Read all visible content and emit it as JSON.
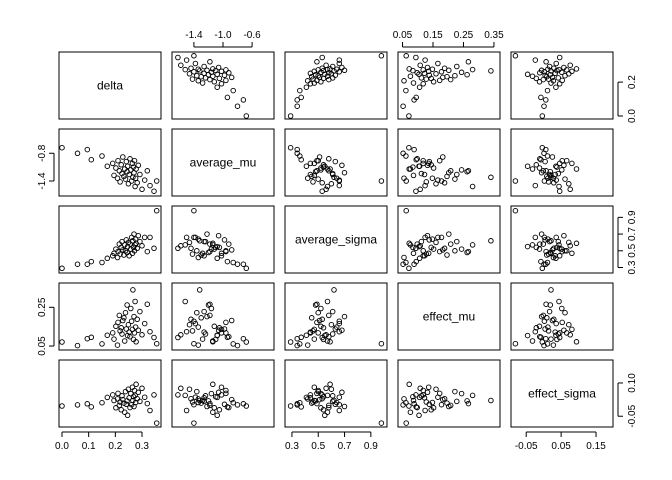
{
  "chart_data": {
    "type": "scatter",
    "variables": [
      "delta",
      "average_mu",
      "average_sigma",
      "effect_mu",
      "effect_sigma"
    ],
    "ranges": [
      [
        0.0,
        0.36
      ],
      [
        -1.66,
        -0.34
      ],
      [
        0.27,
        1.0
      ],
      [
        0.045,
        0.36
      ],
      [
        -0.085,
        0.19
      ]
    ],
    "ticks": [
      [
        0.0,
        0.1,
        0.2,
        0.3
      ],
      [
        -1.4,
        -1.0,
        -0.6
      ],
      [
        0.3,
        0.5,
        0.7,
        0.9
      ],
      [
        0.05,
        0.15,
        0.25,
        0.35
      ],
      [
        -0.05,
        0.05,
        0.15
      ]
    ],
    "tick_labels": [
      [
        "0.0",
        "0.1",
        "0.2",
        "0.3"
      ],
      [
        "-1.4",
        "-1.0",
        "-0.6"
      ],
      [
        "0.3",
        "0.5",
        "0.7",
        "0.9"
      ],
      [
        "0.05",
        "0.15",
        "0.25",
        "0.35"
      ],
      [
        "-0.05",
        "0.05",
        "0.15"
      ]
    ],
    "alt_ticks": [
      [
        0.0,
        0.2
      ],
      [
        -1.4,
        -0.8
      ],
      [
        0.3,
        0.5,
        0.7,
        0.9
      ],
      [
        0.05,
        0.25
      ],
      [
        -0.05,
        0.1
      ]
    ],
    "alt_tick_labels": [
      [
        "0.0",
        "0.2"
      ],
      [
        "-1.4",
        "-0.8"
      ],
      [
        "0.3",
        "0.5",
        "0.7",
        "0.9"
      ],
      [
        "0.05",
        "0.25"
      ],
      [
        "-0.05",
        "0.10"
      ]
    ],
    "points": [
      [
        0.0,
        -0.68,
        0.29,
        0.071,
        -0.004
      ],
      [
        0.058,
        -0.8,
        0.34,
        0.052,
        0.001
      ],
      [
        0.095,
        -0.72,
        0.34,
        0.088,
        0.006
      ],
      [
        0.11,
        -0.94,
        0.37,
        0.095,
        -0.008
      ],
      [
        0.15,
        -0.86,
        0.36,
        0.061,
        0.011
      ],
      [
        0.17,
        -1.08,
        0.41,
        0.106,
        0.035
      ],
      [
        0.19,
        -1.02,
        0.44,
        0.118,
        0.046
      ],
      [
        0.195,
        -1.28,
        0.47,
        0.086,
        0.021
      ],
      [
        0.202,
        -1.12,
        0.52,
        0.152,
        -0.012
      ],
      [
        0.208,
        -1.34,
        0.42,
        0.055,
        0.028
      ],
      [
        0.21,
        -0.96,
        0.49,
        0.172,
        0.053
      ],
      [
        0.215,
        -1.18,
        0.58,
        0.208,
        -0.001
      ],
      [
        0.218,
        -1.42,
        0.46,
        0.128,
        0.014
      ],
      [
        0.222,
        -1.05,
        0.54,
        0.144,
        -0.021
      ],
      [
        0.225,
        -1.24,
        0.61,
        0.112,
        0.042
      ],
      [
        0.228,
        -0.88,
        0.51,
        0.182,
        0.025
      ],
      [
        0.232,
        -1.3,
        0.45,
        0.196,
        0.009
      ],
      [
        0.235,
        -1.14,
        0.57,
        0.076,
        -0.032
      ],
      [
        0.238,
        -1.36,
        0.5,
        0.222,
        0.061
      ],
      [
        0.241,
        -0.98,
        0.63,
        0.138,
        0.004
      ],
      [
        0.244,
        -1.2,
        0.48,
        0.262,
        0.019
      ],
      [
        0.246,
        -1.08,
        0.55,
        0.104,
        -0.046
      ],
      [
        0.249,
        -1.46,
        0.6,
        0.16,
        0.072
      ],
      [
        0.252,
        -1.26,
        0.44,
        0.122,
        0.033
      ],
      [
        0.255,
        -0.92,
        0.58,
        0.098,
        -0.011
      ],
      [
        0.258,
        -1.16,
        0.52,
        0.244,
        0.052
      ],
      [
        0.261,
        -1.4,
        0.66,
        0.178,
        0.002
      ],
      [
        0.264,
        -1.02,
        0.47,
        0.136,
        0.081
      ],
      [
        0.266,
        -1.32,
        0.62,
        0.34,
        0.021
      ],
      [
        0.268,
        -1.1,
        0.54,
        0.084,
        0.038
      ],
      [
        0.27,
        -1.22,
        0.7,
        0.202,
        -0.006
      ],
      [
        0.272,
        -0.96,
        0.5,
        0.118,
        0.066
      ],
      [
        0.274,
        -1.52,
        0.57,
        0.28,
        0.044
      ],
      [
        0.276,
        -1.34,
        0.64,
        0.148,
        0.012
      ],
      [
        0.278,
        -1.14,
        0.59,
        0.072,
        0.094
      ],
      [
        0.282,
        -1.44,
        0.53,
        0.188,
        0.029
      ],
      [
        0.286,
        -1.06,
        0.68,
        0.132,
        0.058
      ],
      [
        0.292,
        -1.26,
        0.61,
        0.228,
        0.017
      ],
      [
        0.3,
        -1.58,
        0.56,
        0.108,
        0.076
      ],
      [
        0.31,
        -1.38,
        0.66,
        0.166,
        0.036
      ],
      [
        0.32,
        -1.18,
        0.49,
        0.266,
        0.007
      ],
      [
        0.33,
        -1.5,
        0.66,
        0.124,
        -0.024
      ],
      [
        0.345,
        -1.62,
        0.53,
        0.094,
        0.046
      ],
      [
        0.355,
        -1.4,
        0.98,
        0.062,
        -0.081
      ]
    ]
  }
}
